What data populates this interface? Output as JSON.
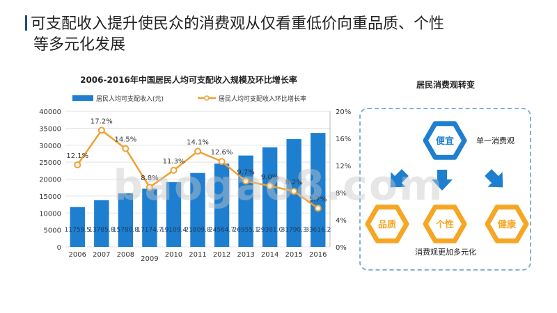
{
  "slide": {
    "title_line1": "可支配收入提升使民众的消费观从仅看重低价向重品质、个性",
    "title_line2": "等多元化发展"
  },
  "chart_data": {
    "type": "bar",
    "title": "2006-2016年中国居民人均可支配收入规模及环比增长率",
    "categories": [
      "2006",
      "2007",
      "2008",
      "2009",
      "2010",
      "2011",
      "2012",
      "2013",
      "2014",
      "2015",
      "2016"
    ],
    "series": [
      {
        "name": "居民人均可支配收入(元)",
        "type": "bar",
        "axis": "left",
        "color": "#1e7fd0",
        "values": [
          11759.5,
          13785.8,
          15780.8,
          17174.7,
          19109.4,
          21809.8,
          24564.7,
          26955.1,
          29381.0,
          31790.3,
          33616.2
        ],
        "labels": [
          "11759.5",
          "13785.8",
          "15780.8",
          "17174.7",
          "19109.4",
          "21809.8",
          "24564.7",
          "26955.1",
          "29381.0",
          "31790.3",
          "33616.2"
        ]
      },
      {
        "name": "居民人均可支配收入环比增长率",
        "type": "line",
        "axis": "right",
        "color": "#f0a030",
        "values": [
          12.1,
          17.2,
          14.5,
          8.8,
          11.3,
          14.1,
          12.6,
          9.7,
          9.0,
          8.2,
          5.7
        ],
        "labels": [
          "12.1%",
          "17.2%",
          "14.5%",
          "8.8%",
          "11.3%",
          "14.1%",
          "12.6%",
          "9.7%",
          "9.0%",
          "8.2%",
          "5.7%"
        ]
      }
    ],
    "y_left": {
      "min": 0,
      "max": 40000,
      "ticks": [
        "0",
        "5000",
        "10000",
        "15000",
        "20000",
        "25000",
        "30000",
        "35000",
        "40000"
      ]
    },
    "y_right": {
      "min": 0,
      "max": 20,
      "ticks": [
        "0%",
        "4%",
        "8%",
        "12%",
        "16%",
        "20%"
      ]
    },
    "legend_position": "top",
    "grid": true
  },
  "panel": {
    "title": "居民消费观转变",
    "hex_top": "便宜",
    "hex_top_caption": "单一消费观",
    "hex_left": "品质",
    "hex_mid": "个性",
    "hex_right": "健康",
    "bottom_caption": "消费观更加多元化",
    "colors": {
      "blue": "#1e7fd0",
      "orange": "#f5a623",
      "arrow": "#1e7fd0"
    }
  },
  "watermark": "baogao8.com"
}
